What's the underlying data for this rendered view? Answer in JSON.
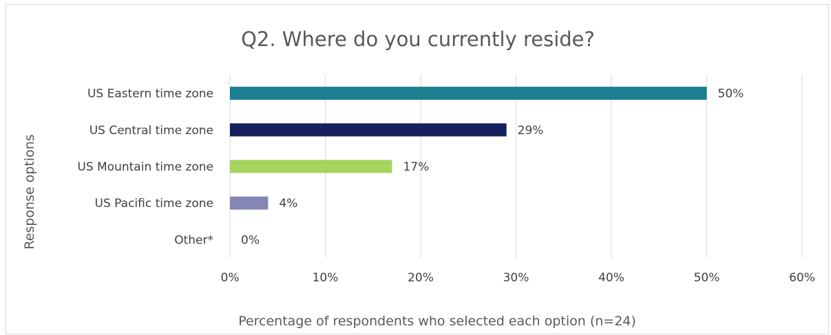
{
  "chart_data": {
    "type": "bar",
    "orientation": "horizontal",
    "title": "Q2. Where do you currently reside?",
    "xlabel": "Percentage of respondents who selected each option (n=24)",
    "ylabel": "Response options",
    "categories": [
      "US Eastern time zone",
      "US Central time zone",
      "US Mountain time zone",
      "US Pacific time zone",
      "Other*"
    ],
    "values": [
      50,
      29,
      17,
      4,
      0
    ],
    "value_labels": [
      "50%",
      "29%",
      "17%",
      "4%",
      "0%"
    ],
    "colors": [
      "#1b7f8f",
      "#16205e",
      "#a5d45f",
      "#8487b5",
      "#8487b5"
    ],
    "xlim": [
      0,
      60
    ],
    "xticks": [
      0,
      10,
      20,
      30,
      40,
      50,
      60
    ],
    "xtick_labels": [
      "0%",
      "10%",
      "20%",
      "30%",
      "40%",
      "50%",
      "60%"
    ],
    "grid": true,
    "legend": "none"
  }
}
